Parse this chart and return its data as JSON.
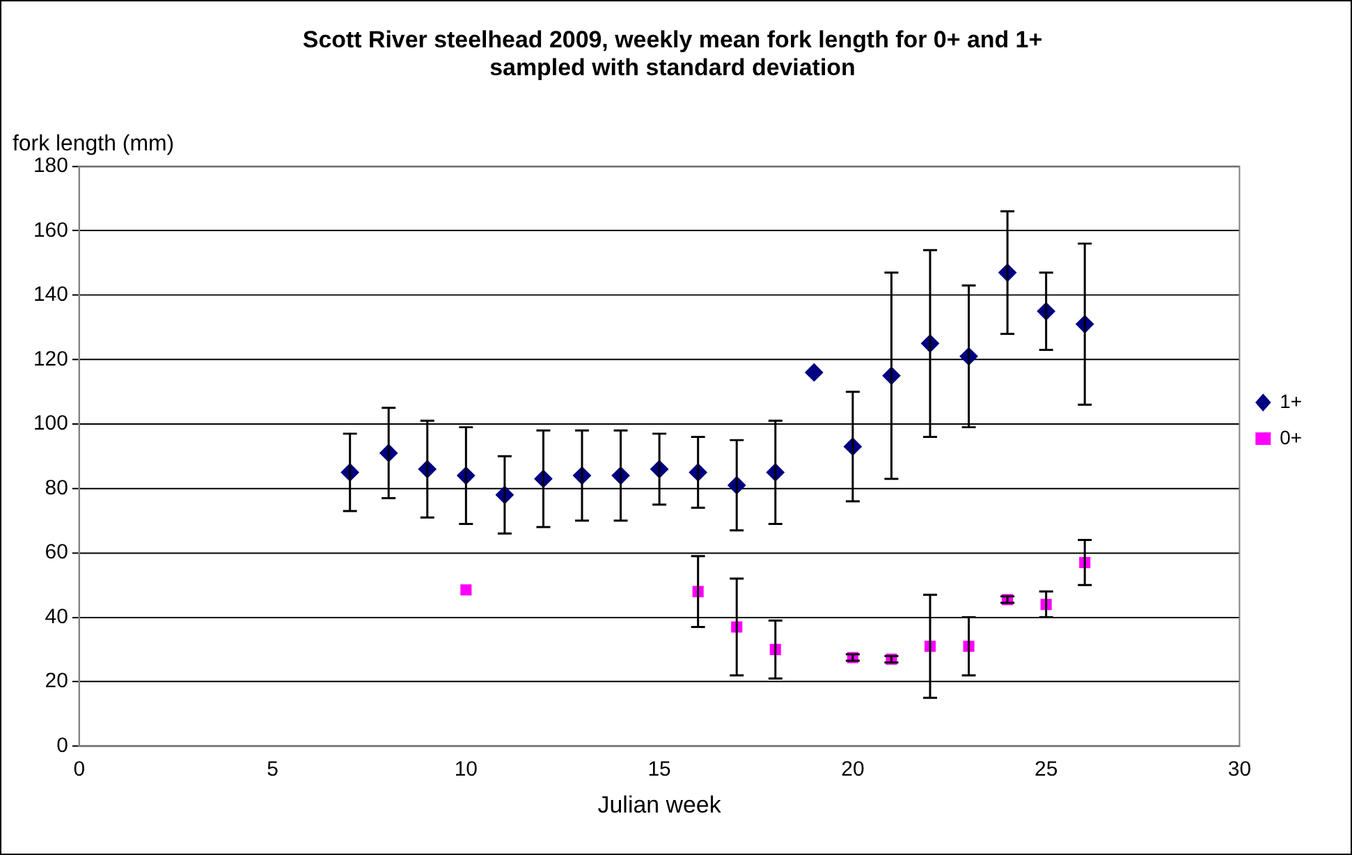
{
  "chart_data": {
    "type": "scatter",
    "title": "Scott River steelhead 2009, weekly mean fork length for 0+ and 1+ sampled with standard deviation",
    "xlabel": "Julian week",
    "ylabel": "fork length (mm)",
    "xlim": [
      0,
      30
    ],
    "xticks": [
      0,
      5,
      10,
      15,
      20,
      25,
      30
    ],
    "ylim": [
      0,
      180
    ],
    "yticks": [
      0,
      20,
      40,
      60,
      80,
      100,
      120,
      140,
      160,
      180
    ],
    "grid": "y",
    "legend": "right",
    "series": [
      {
        "name": "1+",
        "color": "#000080",
        "marker": "diamond",
        "x": [
          7,
          8,
          9,
          10,
          11,
          12,
          13,
          14,
          15,
          16,
          17,
          18,
          19,
          20,
          21,
          22,
          23,
          24,
          25,
          26
        ],
        "values": [
          85,
          91,
          86,
          84,
          78,
          83,
          84,
          84,
          86,
          85,
          81,
          85,
          116,
          93,
          115,
          125,
          121,
          147,
          135,
          131
        ],
        "errors": [
          12,
          14,
          15,
          15,
          12,
          15,
          14,
          14,
          11,
          11,
          14,
          16,
          null,
          17,
          32,
          29,
          22,
          19,
          12,
          25
        ]
      },
      {
        "name": "0+",
        "color": "#ff00ff",
        "marker": "square",
        "x": [
          10,
          16,
          17,
          18,
          20,
          21,
          22,
          23,
          24,
          25,
          26
        ],
        "values": [
          48.5,
          48,
          37,
          30,
          27.5,
          27,
          31,
          31,
          45.5,
          44,
          57
        ],
        "errors": [
          null,
          11,
          15,
          9,
          1,
          1,
          16,
          9,
          1,
          4,
          7
        ]
      }
    ]
  }
}
